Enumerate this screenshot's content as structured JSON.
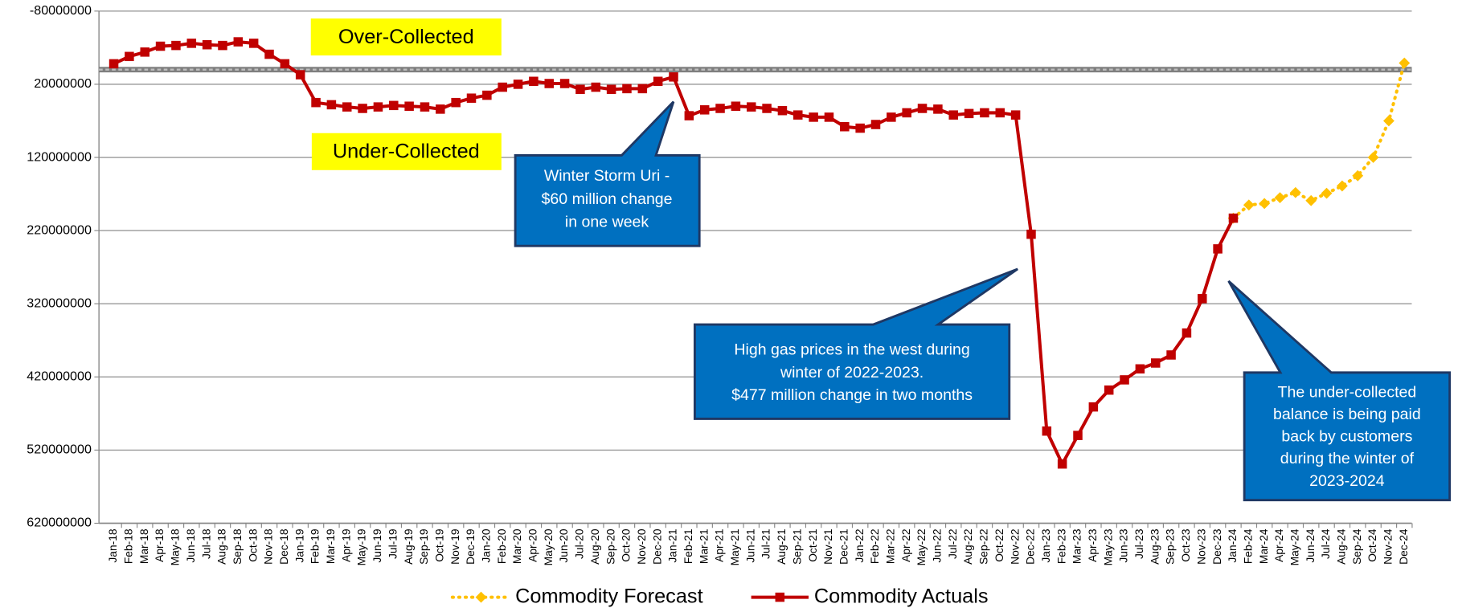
{
  "chart_data": {
    "type": "line",
    "categories": [
      "Jan-18",
      "Feb-18",
      "Mar-18",
      "Apr-18",
      "May-18",
      "Jun-18",
      "Jul-18",
      "Aug-18",
      "Sep-18",
      "Oct-18",
      "Nov-18",
      "Dec-18",
      "Jan-19",
      "Feb-19",
      "Mar-19",
      "Apr-19",
      "May-19",
      "Jun-19",
      "Jul-19",
      "Aug-19",
      "Sep-19",
      "Oct-19",
      "Nov-19",
      "Dec-19",
      "Jan-20",
      "Feb-20",
      "Mar-20",
      "Apr-20",
      "May-20",
      "Jun-20",
      "Jul-20",
      "Aug-20",
      "Sep-20",
      "Oct-20",
      "Nov-20",
      "Dec-20",
      "Jan-21",
      "Feb-21",
      "Mar-21",
      "Apr-21",
      "May-21",
      "Jun-21",
      "Jul-21",
      "Aug-21",
      "Sep-21",
      "Oct-21",
      "Nov-21",
      "Dec-21",
      "Jan-22",
      "Feb-22",
      "Mar-22",
      "Apr-22",
      "May-22",
      "Jun-22",
      "Jul-22",
      "Aug-22",
      "Sep-22",
      "Oct-22",
      "Nov-22",
      "Dec-22",
      "Jan-23",
      "Feb-23",
      "Mar-23",
      "Apr-23",
      "May-23",
      "Jun-23",
      "Jul-23",
      "Aug-23",
      "Sep-23",
      "Oct-23",
      "Nov-23",
      "Dec-23",
      "Jan-24",
      "Feb-24",
      "Mar-24",
      "Apr-24",
      "May-24",
      "Jun-24",
      "Jul-24",
      "Aug-24",
      "Sep-24",
      "Oct-24",
      "Nov-24",
      "Dec-24"
    ],
    "series": [
      {
        "name": "Commodity Forecast",
        "color": "#ffc000",
        "style": "dotted",
        "marker": "diamond",
        "values": [
          null,
          null,
          null,
          null,
          null,
          null,
          null,
          null,
          null,
          null,
          null,
          null,
          null,
          null,
          null,
          null,
          null,
          null,
          null,
          null,
          null,
          null,
          null,
          null,
          null,
          null,
          null,
          null,
          null,
          null,
          null,
          null,
          null,
          null,
          null,
          null,
          null,
          null,
          null,
          null,
          null,
          null,
          null,
          null,
          null,
          null,
          null,
          null,
          null,
          null,
          null,
          null,
          null,
          null,
          null,
          null,
          null,
          null,
          null,
          null,
          null,
          null,
          null,
          null,
          null,
          null,
          null,
          null,
          null,
          null,
          null,
          null,
          203000000,
          185000000,
          183000000,
          175000000,
          168000000,
          179000000,
          169000000,
          159000000,
          145000000,
          120000000,
          70000000,
          -9000000
        ]
      },
      {
        "name": "Commodity Actuals",
        "color": "#c00000",
        "style": "solid",
        "marker": "square",
        "values": [
          -8000000,
          -18000000,
          -24000000,
          -32000000,
          -33000000,
          -36000000,
          -34000000,
          -33000000,
          -38000000,
          -36000000,
          -21000000,
          -8000000,
          7000000,
          45000000,
          48000000,
          51000000,
          53000000,
          51000000,
          49000000,
          50000000,
          51000000,
          54000000,
          45000000,
          39000000,
          35000000,
          24000000,
          20000000,
          16000000,
          19000000,
          19000000,
          27000000,
          24000000,
          27000000,
          26000000,
          26000000,
          16000000,
          10000000,
          63000000,
          55000000,
          53000000,
          50000000,
          51000000,
          53000000,
          56000000,
          62000000,
          65000000,
          65000000,
          78000000,
          80000000,
          75000000,
          65000000,
          59000000,
          53000000,
          54000000,
          62000000,
          60000000,
          59000000,
          59000000,
          62000000,
          225000000,
          494000000,
          539000000,
          500000000,
          461000000,
          438000000,
          424000000,
          409000000,
          401000000,
          390000000,
          360000000,
          313000000,
          245000000,
          203000000,
          null,
          null,
          null,
          null,
          null,
          null,
          null,
          null,
          null,
          null,
          null
        ]
      }
    ],
    "ylim": [
      -80000000,
      620000000
    ],
    "y_reversed": true,
    "yticks": [
      -80000000,
      20000000,
      120000000,
      220000000,
      320000000,
      420000000,
      520000000,
      620000000
    ],
    "grid": true,
    "reference_line": 0,
    "legend": "bottom",
    "annotations": {
      "over": "Over-Collected",
      "under": "Under-Collected",
      "uri": [
        "Winter Storm Uri -",
        "$60 million change",
        "in one week"
      ],
      "gas": [
        "High gas prices in the west during",
        "winter of 2022-2023.",
        "$477 million change in two months"
      ],
      "payback": [
        "The under-collected",
        "balance is being paid",
        "back by customers",
        "during the winter of",
        "2023-2024"
      ]
    }
  }
}
